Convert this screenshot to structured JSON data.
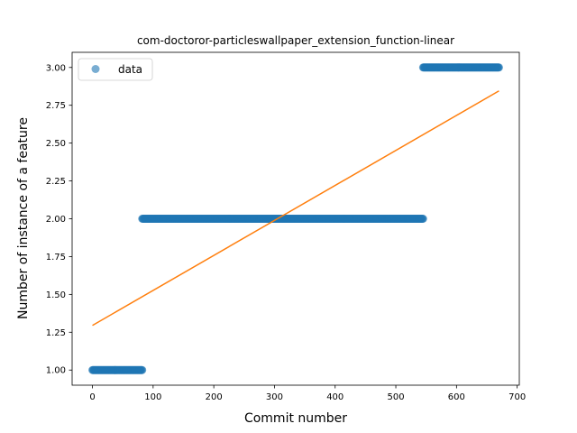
{
  "chart_data": {
    "type": "scatter",
    "title": "com-doctoror-particleswallpaper_extension_function-linear",
    "xlabel": "Commit number",
    "ylabel": "Number of instance of a feature",
    "xlim": [
      -33.5,
      703.5
    ],
    "ylim": [
      0.9,
      3.1
    ],
    "xticks": [
      0,
      100,
      200,
      300,
      400,
      500,
      600,
      700
    ],
    "yticks": [
      1.0,
      1.25,
      1.5,
      1.75,
      2.0,
      2.25,
      2.5,
      2.75,
      3.0
    ],
    "xtick_labels": [
      "0",
      "100",
      "200",
      "300",
      "400",
      "500",
      "600",
      "700"
    ],
    "ytick_labels": [
      "1.00",
      "1.25",
      "1.50",
      "1.75",
      "2.00",
      "2.25",
      "2.50",
      "2.75",
      "3.00"
    ],
    "legend": {
      "position": "upper-left",
      "entries": [
        "data"
      ]
    },
    "series": [
      {
        "name": "data",
        "kind": "points",
        "color": "#1f77b4",
        "segments": [
          {
            "x_start": 0,
            "x_end": 82,
            "y": 1
          },
          {
            "x_start": 82,
            "x_end": 545,
            "y": 2
          },
          {
            "x_start": 545,
            "x_end": 670,
            "y": 3
          }
        ]
      },
      {
        "kind": "line",
        "color": "#ff7f0e",
        "x": [
          0,
          670
        ],
        "y": [
          1.295,
          2.845
        ]
      }
    ]
  }
}
